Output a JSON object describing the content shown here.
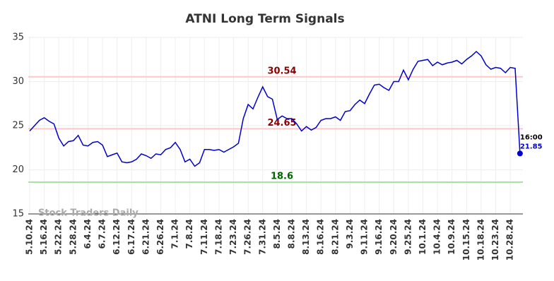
{
  "chart_data": {
    "type": "line",
    "title": "ATNI Long Term Signals",
    "watermark": "Stock Traders Daily",
    "categories": [
      "5.10.24",
      null,
      null,
      "5.16.24",
      null,
      null,
      "5.22.24",
      null,
      null,
      "5.28.24",
      null,
      null,
      "6.4.24",
      null,
      null,
      "6.7.24",
      null,
      null,
      "6.12.24",
      null,
      null,
      "6.17.24",
      null,
      null,
      "6.21.24",
      null,
      null,
      "6.26.24",
      null,
      null,
      "7.1.24",
      null,
      null,
      "7.8.24",
      null,
      null,
      "7.11.24",
      null,
      null,
      "7.18.24",
      null,
      null,
      "7.23.24",
      null,
      null,
      "7.26.24",
      null,
      null,
      "7.31.24",
      null,
      null,
      "8.5.24",
      null,
      null,
      "8.8.24",
      null,
      null,
      "8.13.24",
      null,
      null,
      "8.16.24",
      null,
      null,
      "8.21.24",
      null,
      null,
      "9.3.24",
      null,
      null,
      "9.11.24",
      null,
      null,
      "9.16.24",
      null,
      null,
      "9.20.24",
      null,
      null,
      "9.25.24",
      null,
      null,
      "10.1.24",
      null,
      null,
      "10.4.24",
      null,
      null,
      "10.9.24",
      null,
      null,
      "10.15.24",
      null,
      null,
      "10.18.24",
      null,
      null,
      "10.23.24",
      null,
      null,
      "10.28.24",
      null,
      null
    ],
    "series": [
      {
        "color": "#0000cc",
        "values": [
          24.4,
          25.0,
          25.6,
          25.9,
          25.5,
          25.2,
          23.6,
          22.7,
          23.2,
          23.3,
          23.9,
          22.8,
          22.7,
          23.1,
          23.2,
          22.8,
          21.5,
          21.7,
          21.9,
          20.9,
          20.8,
          20.9,
          21.2,
          21.8,
          21.6,
          21.3,
          21.8,
          21.7,
          22.3,
          22.5,
          23.1,
          22.3,
          20.9,
          21.2,
          20.4,
          20.8,
          22.3,
          22.3,
          22.2,
          22.3,
          22.0,
          22.3,
          22.6,
          23.0,
          25.8,
          27.4,
          26.9,
          28.2,
          29.4,
          28.3,
          28.0,
          25.7,
          26.1,
          25.8,
          25.8,
          25.2,
          24.4,
          24.9,
          24.5,
          24.8,
          25.6,
          25.8,
          25.8,
          26.0,
          25.6,
          26.6,
          26.7,
          27.4,
          27.9,
          27.5,
          28.6,
          29.6,
          29.7,
          29.3,
          29.0,
          30.0,
          30.0,
          31.3,
          30.2,
          31.4,
          32.3,
          32.4,
          32.5,
          31.8,
          32.2,
          31.9,
          32.1,
          32.2,
          32.4,
          32.0,
          32.5,
          32.9,
          33.4,
          32.9,
          31.9,
          31.4,
          31.6,
          31.5,
          31.0,
          31.6,
          31.5,
          21.85
        ]
      }
    ],
    "last_time": "16:00",
    "hlines": [
      {
        "value": 30.54,
        "color": "#ffc8c8",
        "label_color": "#8b0000"
      },
      {
        "value": 24.65,
        "color": "#ffc8c8",
        "label_color": "#8b0000"
      },
      {
        "value": 18.6,
        "color": "#a8e0a8",
        "label_color": "#006400"
      }
    ],
    "ylim": [
      15,
      35
    ],
    "yticks": [
      15,
      20,
      25,
      30,
      35
    ],
    "grid": true
  }
}
